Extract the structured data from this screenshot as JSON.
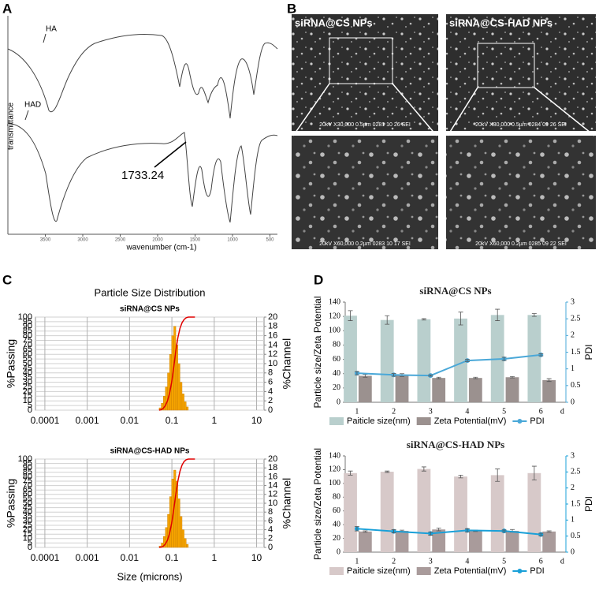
{
  "panel_labels": [
    "A",
    "B",
    "C",
    "D"
  ],
  "ftir": {
    "ylabel": "transmittance",
    "xlabel": "wavenumber (cm-1)",
    "xlim": [
      4000,
      400
    ],
    "xticks": [
      3500,
      3000,
      2500,
      2000,
      1500,
      1000,
      500
    ],
    "series_labels": [
      "HA",
      "HAD"
    ],
    "annotation": "1733.24"
  },
  "sem": {
    "titles": [
      "siRNA@CS NPs",
      "siRNA@CS-HAD NPs"
    ],
    "captions": [
      "20kV  X30,000  0.5µm  0281  10 26 SEI",
      "20kV  X30,000  0.5µm  0284  09 26 SEI",
      "20kV  X60,000  0.2µm  0283  10 17 SEI",
      "20kV  X60,000  0.2µm  0285  09 22 SEI"
    ]
  },
  "psd_title": "Particle Size Distribution",
  "chart_data": [
    {
      "type": "histogram",
      "title": "siRNA@CS NPs",
      "ylabel": "%Passing",
      "y2label": "%Channel",
      "log_x": true,
      "grid": true,
      "xlim": [
        6e-05,
        15
      ],
      "xticks": [
        0.0001,
        0.001,
        0.01,
        0.1,
        1,
        10
      ],
      "ylim": [
        0,
        100
      ],
      "yticks": [
        0,
        5,
        10,
        15,
        20,
        25,
        30,
        35,
        40,
        45,
        50,
        55,
        60,
        65,
        70,
        75,
        80,
        85,
        90,
        95,
        100
      ],
      "y2lim": [
        0,
        20
      ],
      "y2ticks": [
        0,
        2,
        4,
        6,
        8,
        10,
        12,
        14,
        16,
        18,
        20
      ],
      "bins": [
        0.05,
        0.056,
        0.0627,
        0.0702,
        0.0787,
        0.0881,
        0.0987,
        0.1105,
        0.1238,
        0.1386,
        0.1553,
        0.1739,
        0.1948,
        0.2182,
        0.2443
      ],
      "values": [
        0.5,
        1.5,
        3,
        5,
        8,
        12,
        16,
        18,
        14,
        10,
        6,
        3.5,
        1.8,
        0.7
      ],
      "color": "#f5a300",
      "cumulative": {
        "color": "#e00000",
        "x": [
          0.05,
          0.056,
          0.0627,
          0.0702,
          0.0787,
          0.0881,
          0.0987,
          0.1105,
          0.1238,
          0.1386,
          0.1553,
          0.1739,
          0.1948,
          0.2182,
          0.2443,
          0.35
        ],
        "values": [
          0,
          0.5,
          2,
          5,
          10,
          18,
          30,
          46,
          64,
          78,
          88,
          94,
          97.5,
          99.3,
          100,
          100
        ]
      }
    },
    {
      "type": "histogram",
      "title": "siRNA@CS-HAD NPs",
      "xlabel": "Size (microns)",
      "ylabel": "%Passing",
      "y2label": "%Channel",
      "log_x": true,
      "grid": true,
      "xlim": [
        6e-05,
        15
      ],
      "xticks": [
        0.0001,
        0.001,
        0.01,
        0.1,
        1,
        10
      ],
      "ylim": [
        0,
        100
      ],
      "yticks": [
        0,
        5,
        10,
        15,
        20,
        25,
        30,
        35,
        40,
        45,
        50,
        55,
        60,
        65,
        70,
        75,
        80,
        85,
        90,
        95,
        100
      ],
      "y2lim": [
        0,
        20
      ],
      "y2ticks": [
        0,
        2,
        4,
        6,
        8,
        10,
        12,
        14,
        16,
        18,
        20
      ],
      "bins": [
        0.05,
        0.056,
        0.0627,
        0.0702,
        0.0787,
        0.0881,
        0.0987,
        0.1105,
        0.1238,
        0.1386,
        0.1553,
        0.1739,
        0.1948,
        0.2182,
        0.2443
      ],
      "values": [
        0.3,
        1,
        2.5,
        4.5,
        7.5,
        11.5,
        15.5,
        17.5,
        15,
        11,
        7,
        4,
        2,
        0.7
      ],
      "color": "#f5a300",
      "cumulative": {
        "color": "#e00000",
        "x": [
          0.05,
          0.056,
          0.0627,
          0.0702,
          0.0787,
          0.0881,
          0.0987,
          0.1105,
          0.1238,
          0.1386,
          0.1553,
          0.1739,
          0.1948,
          0.2182,
          0.2443,
          0.35
        ],
        "values": [
          0,
          0.3,
          1.3,
          3.8,
          8.3,
          15.8,
          27.3,
          42.8,
          60.3,
          75.3,
          86.3,
          93.3,
          97.3,
          99.3,
          100,
          100
        ]
      }
    },
    {
      "type": "bar",
      "title": "siRNA@CS NPs",
      "ylabel": "Particle size/Zeta Potential",
      "y2label": "PDI",
      "xlabel": "d",
      "categories": [
        "1",
        "2",
        "3",
        "4",
        "5",
        "6"
      ],
      "ylim": [
        0,
        140
      ],
      "yticks": [
        0,
        20,
        40,
        60,
        80,
        100,
        120,
        140
      ],
      "y2lim": [
        0,
        3
      ],
      "y2ticks": [
        0,
        0.5,
        1,
        1.5,
        2,
        2.5,
        3
      ],
      "legend": "bottom",
      "series": [
        {
          "name": "Paiticle size(nm)",
          "color": "#b9cfcd",
          "values": [
            121,
            115,
            116,
            117,
            122,
            122
          ],
          "errors": [
            7,
            6,
            1,
            9,
            8,
            2
          ]
        },
        {
          "name": "Zeta Potential(mV)",
          "color": "#9b918f",
          "values": [
            37,
            38,
            34,
            34,
            35,
            31
          ],
          "errors": [
            2,
            2,
            1,
            1,
            1,
            2
          ]
        },
        {
          "name": "PDI",
          "color": "#4aa8d8",
          "axis": "y2",
          "type": "line",
          "values": [
            0.87,
            0.82,
            0.8,
            1.25,
            1.3,
            1.42
          ],
          "errors": [
            0.05,
            0.04,
            0.02,
            0.03,
            0.05,
            0.03
          ]
        }
      ]
    },
    {
      "type": "bar",
      "title": "siRNA@CS-HAD NPs",
      "ylabel": "Particle size/Zeta Potential",
      "y2label": "PDI",
      "xlabel": "d",
      "categories": [
        "1",
        "2",
        "3",
        "4",
        "5",
        "6"
      ],
      "ylim": [
        0,
        140
      ],
      "yticks": [
        0,
        20,
        40,
        60,
        80,
        100,
        120,
        140
      ],
      "y2lim": [
        0,
        3
      ],
      "y2ticks": [
        0,
        0.5,
        1,
        1.5,
        2,
        2.5,
        3
      ],
      "legend": "bottom",
      "series": [
        {
          "name": "Paiticle size(nm)",
          "color": "#d7c9c9",
          "values": [
            115,
            117,
            121,
            110,
            112,
            115
          ],
          "errors": [
            3,
            1,
            3,
            2,
            9,
            10
          ]
        },
        {
          "name": "Zeta Potential(mV)",
          "color": "#a99b9b",
          "values": [
            30,
            31,
            33,
            31,
            31,
            30
          ],
          "errors": [
            1,
            1,
            2,
            1,
            2,
            1
          ]
        },
        {
          "name": "PDI",
          "color": "#1aa0d8",
          "axis": "y2",
          "type": "line",
          "values": [
            0.73,
            0.65,
            0.58,
            0.68,
            0.66,
            0.55
          ],
          "errors": [
            0.07,
            0.05,
            0.05,
            0.05,
            0.03,
            0.04
          ]
        }
      ]
    }
  ]
}
